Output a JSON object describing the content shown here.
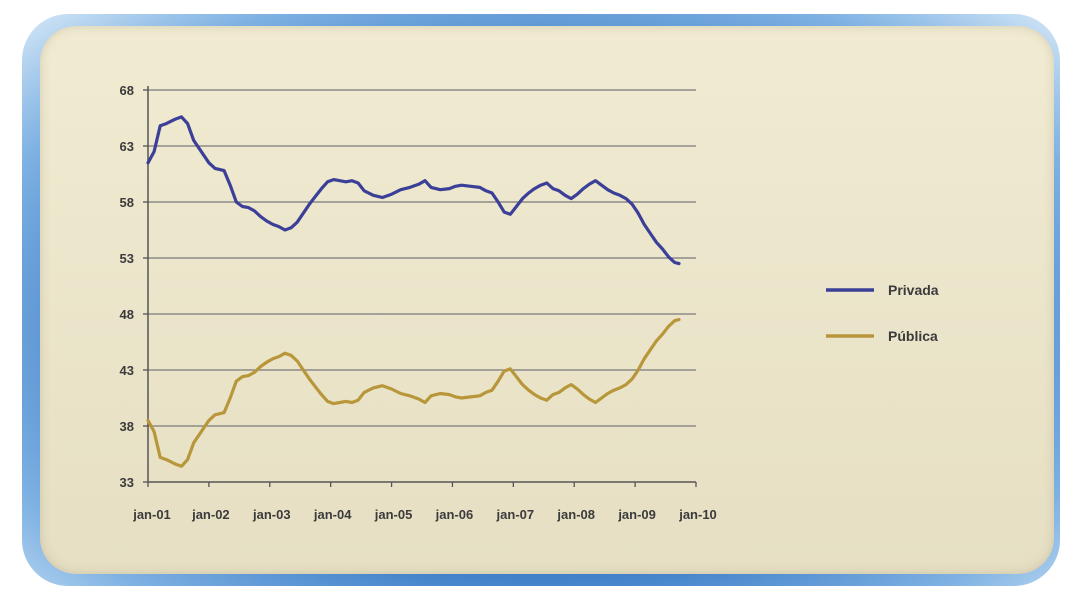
{
  "chart_data": {
    "type": "line",
    "title": "",
    "xlabel": "",
    "ylabel": "",
    "ylim": [
      33,
      68
    ],
    "yticks": [
      "68",
      "63",
      "58",
      "53",
      "48",
      "43",
      "38",
      "33"
    ],
    "xticks": [
      "jan-01",
      "jan-02",
      "jan-03",
      "jan-04",
      "jan-05",
      "jan-06",
      "jan-07",
      "jan-08",
      "jan-09",
      "jan-10"
    ],
    "grid": true,
    "legend_position": "right",
    "series": [
      {
        "name": "Privada",
        "color": "#3b3f98",
        "points": [
          [
            0.0,
            61.5
          ],
          [
            0.1,
            62.5
          ],
          [
            0.2,
            64.8
          ],
          [
            0.3,
            65.0
          ],
          [
            0.45,
            65.4
          ],
          [
            0.55,
            65.6
          ],
          [
            0.65,
            65.0
          ],
          [
            0.75,
            63.5
          ],
          [
            0.9,
            62.3
          ],
          [
            1.0,
            61.5
          ],
          [
            1.1,
            61.0
          ],
          [
            1.25,
            60.8
          ],
          [
            1.35,
            59.5
          ],
          [
            1.45,
            58.0
          ],
          [
            1.55,
            57.6
          ],
          [
            1.65,
            57.5
          ],
          [
            1.75,
            57.2
          ],
          [
            1.85,
            56.7
          ],
          [
            1.95,
            56.3
          ],
          [
            2.05,
            56.0
          ],
          [
            2.15,
            55.8
          ],
          [
            2.25,
            55.5
          ],
          [
            2.35,
            55.7
          ],
          [
            2.45,
            56.2
          ],
          [
            2.55,
            57.0
          ],
          [
            2.65,
            57.8
          ],
          [
            2.75,
            58.5
          ],
          [
            2.85,
            59.2
          ],
          [
            2.95,
            59.8
          ],
          [
            3.05,
            60.0
          ],
          [
            3.15,
            59.9
          ],
          [
            3.25,
            59.8
          ],
          [
            3.35,
            59.9
          ],
          [
            3.45,
            59.7
          ],
          [
            3.55,
            59.0
          ],
          [
            3.7,
            58.6
          ],
          [
            3.85,
            58.4
          ],
          [
            4.0,
            58.7
          ],
          [
            4.15,
            59.1
          ],
          [
            4.3,
            59.3
          ],
          [
            4.45,
            59.6
          ],
          [
            4.55,
            59.9
          ],
          [
            4.65,
            59.3
          ],
          [
            4.8,
            59.1
          ],
          [
            4.95,
            59.2
          ],
          [
            5.05,
            59.4
          ],
          [
            5.15,
            59.5
          ],
          [
            5.3,
            59.4
          ],
          [
            5.45,
            59.3
          ],
          [
            5.55,
            59.0
          ],
          [
            5.65,
            58.8
          ],
          [
            5.75,
            58.0
          ],
          [
            5.85,
            57.1
          ],
          [
            5.95,
            56.9
          ],
          [
            6.05,
            57.6
          ],
          [
            6.15,
            58.3
          ],
          [
            6.25,
            58.8
          ],
          [
            6.35,
            59.2
          ],
          [
            6.45,
            59.5
          ],
          [
            6.55,
            59.7
          ],
          [
            6.65,
            59.2
          ],
          [
            6.75,
            59.0
          ],
          [
            6.85,
            58.6
          ],
          [
            6.95,
            58.3
          ],
          [
            7.05,
            58.7
          ],
          [
            7.15,
            59.2
          ],
          [
            7.25,
            59.6
          ],
          [
            7.35,
            59.9
          ],
          [
            7.45,
            59.5
          ],
          [
            7.55,
            59.1
          ],
          [
            7.65,
            58.8
          ],
          [
            7.75,
            58.6
          ],
          [
            7.85,
            58.3
          ],
          [
            7.95,
            57.8
          ],
          [
            8.05,
            57.0
          ],
          [
            8.15,
            56.0
          ],
          [
            8.25,
            55.2
          ],
          [
            8.35,
            54.4
          ],
          [
            8.45,
            53.8
          ],
          [
            8.55,
            53.1
          ],
          [
            8.65,
            52.6
          ],
          [
            8.72,
            52.5
          ]
        ]
      },
      {
        "name": "Pública",
        "color": "#b8963a",
        "points": [
          [
            0.0,
            38.5
          ],
          [
            0.1,
            37.5
          ],
          [
            0.2,
            35.2
          ],
          [
            0.3,
            35.0
          ],
          [
            0.45,
            34.6
          ],
          [
            0.55,
            34.4
          ],
          [
            0.65,
            35.0
          ],
          [
            0.75,
            36.5
          ],
          [
            0.9,
            37.7
          ],
          [
            1.0,
            38.5
          ],
          [
            1.1,
            39.0
          ],
          [
            1.25,
            39.2
          ],
          [
            1.35,
            40.5
          ],
          [
            1.45,
            42.0
          ],
          [
            1.55,
            42.4
          ],
          [
            1.65,
            42.5
          ],
          [
            1.75,
            42.8
          ],
          [
            1.85,
            43.3
          ],
          [
            1.95,
            43.7
          ],
          [
            2.05,
            44.0
          ],
          [
            2.15,
            44.2
          ],
          [
            2.25,
            44.5
          ],
          [
            2.35,
            44.3
          ],
          [
            2.45,
            43.8
          ],
          [
            2.55,
            43.0
          ],
          [
            2.65,
            42.2
          ],
          [
            2.75,
            41.5
          ],
          [
            2.85,
            40.8
          ],
          [
            2.95,
            40.2
          ],
          [
            3.05,
            40.0
          ],
          [
            3.15,
            40.1
          ],
          [
            3.25,
            40.2
          ],
          [
            3.35,
            40.1
          ],
          [
            3.45,
            40.3
          ],
          [
            3.55,
            41.0
          ],
          [
            3.7,
            41.4
          ],
          [
            3.85,
            41.6
          ],
          [
            4.0,
            41.3
          ],
          [
            4.15,
            40.9
          ],
          [
            4.3,
            40.7
          ],
          [
            4.45,
            40.4
          ],
          [
            4.55,
            40.1
          ],
          [
            4.65,
            40.7
          ],
          [
            4.8,
            40.9
          ],
          [
            4.95,
            40.8
          ],
          [
            5.05,
            40.6
          ],
          [
            5.15,
            40.5
          ],
          [
            5.3,
            40.6
          ],
          [
            5.45,
            40.7
          ],
          [
            5.55,
            41.0
          ],
          [
            5.65,
            41.2
          ],
          [
            5.75,
            42.0
          ],
          [
            5.85,
            42.9
          ],
          [
            5.95,
            43.1
          ],
          [
            6.05,
            42.4
          ],
          [
            6.15,
            41.7
          ],
          [
            6.25,
            41.2
          ],
          [
            6.35,
            40.8
          ],
          [
            6.45,
            40.5
          ],
          [
            6.55,
            40.3
          ],
          [
            6.65,
            40.8
          ],
          [
            6.75,
            41.0
          ],
          [
            6.85,
            41.4
          ],
          [
            6.95,
            41.7
          ],
          [
            7.05,
            41.3
          ],
          [
            7.15,
            40.8
          ],
          [
            7.25,
            40.4
          ],
          [
            7.35,
            40.1
          ],
          [
            7.45,
            40.5
          ],
          [
            7.55,
            40.9
          ],
          [
            7.65,
            41.2
          ],
          [
            7.75,
            41.4
          ],
          [
            7.85,
            41.7
          ],
          [
            7.95,
            42.2
          ],
          [
            8.05,
            43.0
          ],
          [
            8.15,
            44.0
          ],
          [
            8.25,
            44.8
          ],
          [
            8.35,
            45.6
          ],
          [
            8.45,
            46.2
          ],
          [
            8.55,
            46.9
          ],
          [
            8.65,
            47.4
          ],
          [
            8.72,
            47.5
          ]
        ]
      }
    ]
  }
}
